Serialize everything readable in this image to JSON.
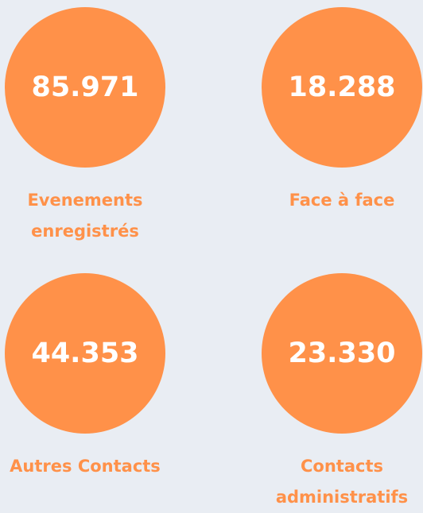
{
  "stats": [
    {
      "value": "85.971",
      "label": "Evenements enregistrés"
    },
    {
      "value": "18.288",
      "label": "Face à face"
    },
    {
      "value": "44.353",
      "label": "Autres Contacts"
    },
    {
      "value": "23.330",
      "label": "Contacts administratifs"
    }
  ]
}
